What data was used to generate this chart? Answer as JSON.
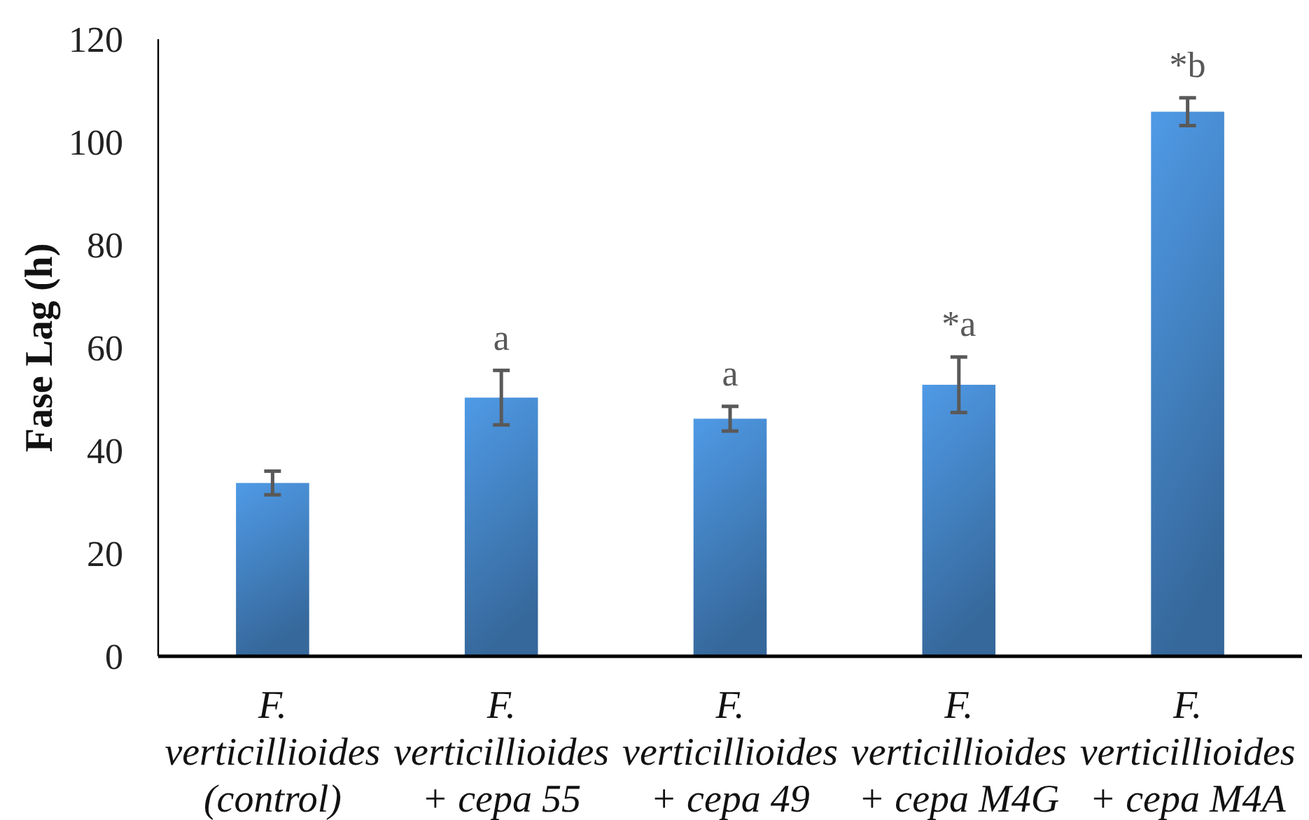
{
  "chart_data": {
    "type": "bar",
    "ylabel": "Fase Lag (h)",
    "categories": [
      "F. verticillioides (control)",
      "F. verticillioides + cepa 55",
      "F. verticillioides + cepa 49",
      "F. verticillioides + cepa M4G",
      "F. verticillioides + cepa M4A"
    ],
    "values": [
      33.7,
      50.3,
      46.2,
      52.8,
      105.9
    ],
    "errors": [
      2.3,
      5.3,
      2.4,
      5.4,
      2.7
    ],
    "color": "#4a8fd6",
    "ylim": [
      0,
      120
    ],
    "yticks": [
      0,
      20,
      40,
      60,
      80,
      100,
      120
    ],
    "annotations": [
      "a",
      "a",
      "*a",
      "*b"
    ]
  }
}
